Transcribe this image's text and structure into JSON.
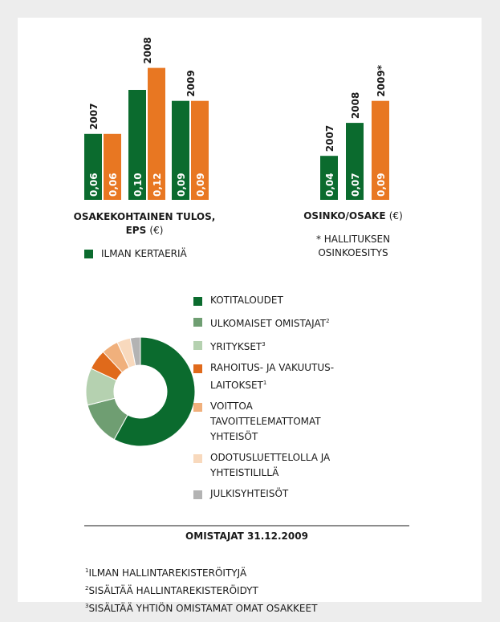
{
  "chart_data": [
    {
      "type": "bar",
      "title": "OSAKEKOHTAINEN TULOS, EPS",
      "unit": "(€)",
      "categories": [
        "2007",
        "2008",
        "2009"
      ],
      "series": [
        {
          "name": "ILMAN KERTAERIÄ",
          "color": "#0b6b2e",
          "values": [
            0.06,
            0.1,
            0.09
          ],
          "value_labels": [
            "0,06",
            "0,10",
            "0,09"
          ]
        },
        {
          "color": "#e87722",
          "values": [
            0.06,
            0.12,
            0.09
          ],
          "value_labels": [
            "0,06",
            "0,12",
            "0,09"
          ]
        }
      ]
    },
    {
      "type": "bar",
      "title": "OSINKO/OSAKE",
      "unit": "(€)",
      "categories": [
        "2007",
        "2008",
        "2009*"
      ],
      "values": [
        0.04,
        0.07,
        0.09
      ],
      "value_labels": [
        "0,04",
        "0,07",
        "0,09"
      ],
      "colors": [
        "#0b6b2e",
        "#0b6b2e",
        "#e87722"
      ],
      "note": "* HALLITUKSEN OSINKOESITYS"
    },
    {
      "type": "pie",
      "title": "OMISTAJAT 31.12.2009",
      "categories": [
        "KOTITALOUDET",
        "ULKOMAISET OMISTAJAT",
        "YRITYKSET",
        "RAHOITUS- JA VAKUUTUS-LAITOKSET",
        "VOITTOA TAVOITTELEMATTOMAT YHTEISÖT",
        "ODOTUSLUETTELOLLA JA YHTEISTILILLÄ",
        "JULKISYHTEISÖT"
      ],
      "category_notes": [
        null,
        "2",
        "3",
        "1",
        null,
        null,
        null
      ],
      "values": [
        58,
        13,
        11,
        6,
        5,
        4,
        3
      ],
      "colors": [
        "#0b6b2e",
        "#6f9e72",
        "#b5d1b0",
        "#e06a1b",
        "#f0b07c",
        "#f8d9bd",
        "#b3b3b3"
      ]
    }
  ],
  "footnotes": [
    {
      "mark": "1",
      "text": "ILMAN HALLINTAREKISTERÖITYJÄ"
    },
    {
      "mark": "2",
      "text": "SISÄLTÄÄ HALLINTAREKISTERÖIDYT"
    },
    {
      "mark": "3",
      "text": "SISÄLTÄÄ YHTIÖN OMISTAMAT OMAT OSAKKEET"
    }
  ]
}
